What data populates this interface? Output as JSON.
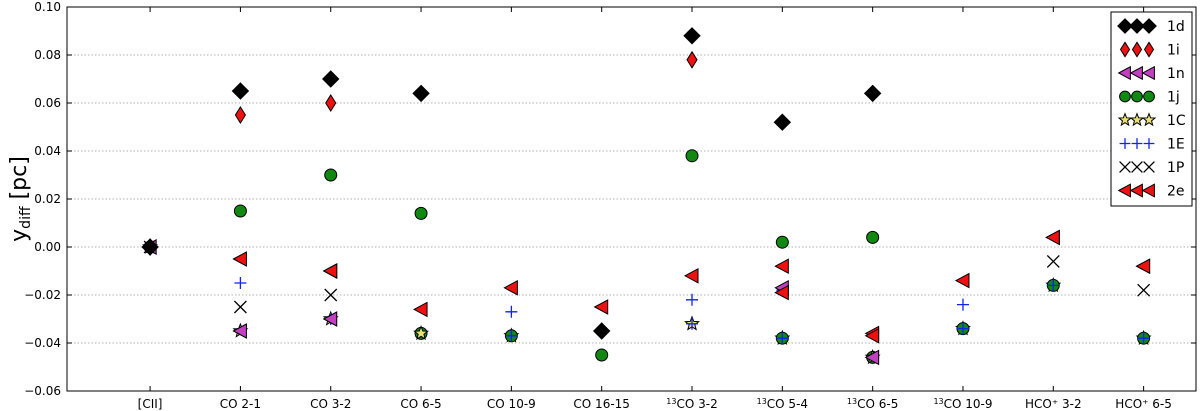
{
  "chart_data": {
    "type": "scatter",
    "title": "",
    "xlabel": "",
    "ylabel": {
      "main": "y",
      "sub": "diff",
      "unit": " [pc]"
    },
    "ylim": [
      -0.06,
      0.1
    ],
    "yticks": [
      "−0.06",
      "−0.04",
      "−0.02",
      "0.00",
      "0.02",
      "0.04",
      "0.06",
      "0.08",
      "0.10"
    ],
    "ytick_values": [
      -0.06,
      -0.04,
      -0.02,
      0.0,
      0.02,
      0.04,
      0.06,
      0.08,
      0.1
    ],
    "grid": "horizontal dotted",
    "legend_position": "top-right",
    "categories": [
      {
        "pre": "",
        "main": "[CII]"
      },
      {
        "pre": "",
        "main": "CO 2-1"
      },
      {
        "pre": "",
        "main": "CO 3-2"
      },
      {
        "pre": "",
        "main": "CO 6-5"
      },
      {
        "pre": "",
        "main": "CO 10-9"
      },
      {
        "pre": "",
        "main": "CO 16-15"
      },
      {
        "pre": "13",
        "main": "CO 3-2"
      },
      {
        "pre": "13",
        "main": "CO 5-4"
      },
      {
        "pre": "13",
        "main": "CO 6-5"
      },
      {
        "pre": "13",
        "main": "CO 10-9"
      },
      {
        "pre": "",
        "main": "HCO⁺ 3-2"
      },
      {
        "pre": "",
        "main": "HCO⁺ 6-5"
      }
    ],
    "series": [
      {
        "name": "1d",
        "marker": "diamond",
        "color": "#000000",
        "values": [
          0,
          0.065,
          0.07,
          0.064,
          null,
          null,
          0.088,
          0.052,
          0.064,
          null,
          null,
          null
        ]
      },
      {
        "name": "1i",
        "marker": "thin_diamond",
        "color": "#ee1111",
        "values": [
          0,
          0.055,
          0.06,
          null,
          null,
          null,
          0.078,
          null,
          null,
          null,
          null,
          null
        ]
      },
      {
        "name": "1n",
        "marker": "triangle_left",
        "color": "#c040c0",
        "values": [
          0,
          null,
          -0.01,
          null,
          null,
          null,
          null,
          -0.017,
          null,
          null,
          0.004,
          -0.008
        ]
      },
      {
        "name": "1j",
        "marker": "circle",
        "color": "#118811",
        "values": [
          0,
          0.015,
          0.03,
          0.014,
          -0.037,
          -0.045,
          0.038,
          0.002,
          0.004,
          -0.034,
          -0.016,
          -0.038
        ]
      },
      {
        "name": "1C",
        "marker": "star",
        "color": "#e8e070",
        "values": [
          0,
          -0.035,
          -0.03,
          null,
          -0.037,
          null,
          -0.032,
          -0.038,
          null,
          -0.034,
          -0.016,
          -0.038
        ]
      },
      {
        "name": "1E",
        "marker": "plus",
        "color": "#1122ee",
        "values": [
          0,
          -0.015,
          null,
          -0.036,
          -0.027,
          -0.035,
          -0.022,
          -0.018,
          -0.046,
          -0.024,
          null,
          null
        ]
      },
      {
        "name": "1P",
        "marker": "x",
        "color": "#000000",
        "values": [
          0,
          -0.025,
          -0.02,
          null,
          null,
          null,
          null,
          null,
          null,
          null,
          -0.006,
          -0.018
        ]
      },
      {
        "name": "2e",
        "marker": "triangle_left",
        "color": "#ee1111",
        "values": [
          0,
          -0.005,
          null,
          -0.026,
          -0.017,
          -0.025,
          -0.012,
          -0.008,
          -0.036,
          -0.014,
          null,
          null
        ]
      }
    ],
    "extra_markers": [
      {
        "series": "1d",
        "marker": "diamond",
        "color": "#000000",
        "points": [
          [
            5,
            -0.035
          ]
        ]
      },
      {
        "series": "1j",
        "marker": "circle",
        "color": "#118811",
        "points": [
          [
            3,
            -0.036
          ],
          [
            7,
            -0.038
          ],
          [
            8,
            -0.046
          ]
        ]
      },
      {
        "series": "1E",
        "marker": "plus",
        "color": "#1122ee",
        "points": [
          [
            2,
            -0.03
          ],
          [
            4,
            -0.037
          ],
          [
            6,
            -0.032
          ],
          [
            7,
            -0.038
          ],
          [
            9,
            -0.034
          ],
          [
            10,
            -0.016
          ],
          [
            11,
            -0.038
          ]
        ]
      },
      {
        "series": "1C",
        "marker": "star",
        "color": "#e8e070",
        "points": [
          [
            3,
            -0.036
          ],
          [
            8,
            -0.046
          ]
        ]
      },
      {
        "series": "1n",
        "marker": "triangle_left",
        "color": "#c040c0",
        "points": [
          [
            2,
            -0.03
          ],
          [
            8,
            -0.046
          ],
          [
            1,
            -0.035
          ]
        ]
      },
      {
        "series": "2e",
        "marker": "triangle_left",
        "color": "#ee1111",
        "points": [
          [
            8,
            -0.037
          ],
          [
            2,
            -0.01
          ],
          [
            10,
            0.004
          ],
          [
            11,
            -0.008
          ],
          [
            7,
            -0.019
          ]
        ]
      }
    ]
  }
}
